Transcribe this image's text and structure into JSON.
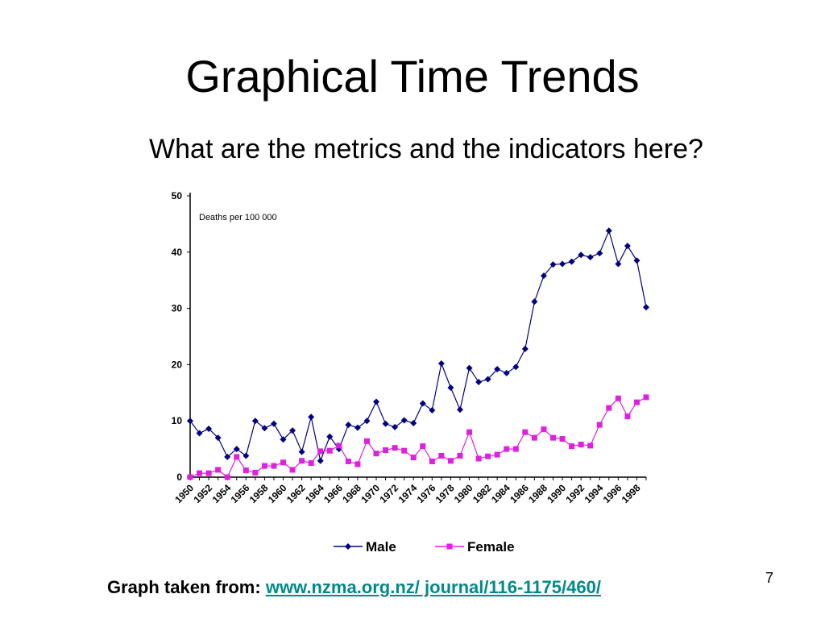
{
  "slide": {
    "title": "Graphical Time Trends",
    "subtitle": "What are the metrics and the indicators here?",
    "source_label": "Graph taken from:",
    "source_link": "www.nzma.org.nz/ journal/116-1175/460/",
    "page_number": "7"
  },
  "chart_data": {
    "type": "line",
    "title": "",
    "annotation": "Deaths per 100 000",
    "xlabel": "",
    "ylabel": "",
    "ylim": [
      0,
      50
    ],
    "yticks": [
      0,
      10,
      20,
      30,
      40,
      50
    ],
    "x": [
      1950,
      1951,
      1952,
      1953,
      1954,
      1955,
      1956,
      1957,
      1958,
      1959,
      1960,
      1961,
      1962,
      1963,
      1964,
      1965,
      1966,
      1967,
      1968,
      1969,
      1970,
      1971,
      1972,
      1973,
      1974,
      1975,
      1976,
      1977,
      1978,
      1979,
      1980,
      1981,
      1982,
      1983,
      1984,
      1985,
      1986,
      1987,
      1988,
      1989,
      1990,
      1991,
      1992,
      1993,
      1994,
      1995,
      1996,
      1997,
      1998,
      1999
    ],
    "xticks": [
      1950,
      1952,
      1954,
      1956,
      1958,
      1960,
      1962,
      1964,
      1966,
      1968,
      1970,
      1972,
      1974,
      1976,
      1978,
      1980,
      1982,
      1984,
      1986,
      1988,
      1990,
      1992,
      1994,
      1996,
      1998
    ],
    "legend_position": "bottom",
    "grid": false,
    "series": [
      {
        "name": "Male",
        "color": "#000080",
        "marker": "diamond",
        "values": [
          10.0,
          7.8,
          8.6,
          7.0,
          3.6,
          5.0,
          3.8,
          10.0,
          8.7,
          9.5,
          6.7,
          8.3,
          4.5,
          10.7,
          2.9,
          7.2,
          5.0,
          9.3,
          8.8,
          10.0,
          13.4,
          9.5,
          8.9,
          10.1,
          9.6,
          13.1,
          11.9,
          20.2,
          15.9,
          12.0,
          19.4,
          16.9,
          17.4,
          19.2,
          18.5,
          19.6,
          22.8,
          31.2,
          35.8,
          37.8,
          37.9,
          38.3,
          39.5,
          39.1,
          39.8,
          43.8,
          37.9,
          41.1,
          38.5,
          30.2
        ]
      },
      {
        "name": "Female",
        "color": "#e020e0",
        "marker": "square",
        "values": [
          0.0,
          0.7,
          0.7,
          1.3,
          0.0,
          3.6,
          1.2,
          0.8,
          2.0,
          2.0,
          2.6,
          1.3,
          2.9,
          2.5,
          4.6,
          4.7,
          5.6,
          2.8,
          2.3,
          6.4,
          4.2,
          4.8,
          5.2,
          4.7,
          3.5,
          5.5,
          2.8,
          3.8,
          2.9,
          3.8,
          8.0,
          3.3,
          3.7,
          4.0,
          5.0,
          5.0,
          8.0,
          7.0,
          8.5,
          7.0,
          6.8,
          5.5,
          5.8,
          5.6,
          9.3,
          12.3,
          14.0,
          10.8,
          13.3,
          14.2
        ]
      }
    ]
  }
}
